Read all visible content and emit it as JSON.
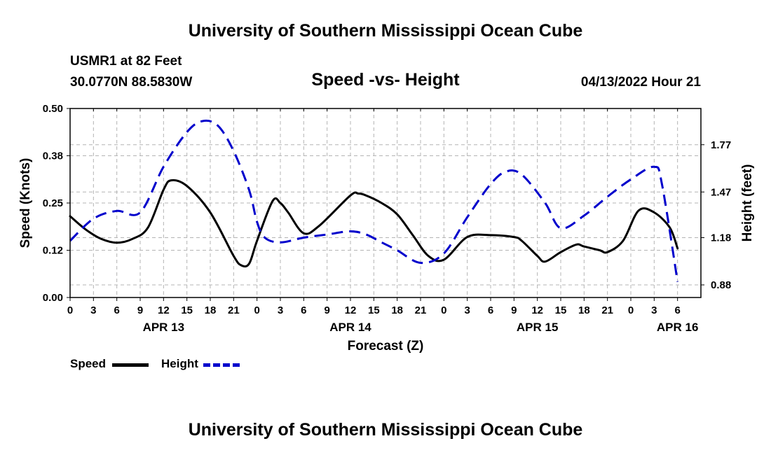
{
  "header": {
    "title": "University of Southern Mississippi Ocean Cube",
    "station": "USMR1 at 82 Feet",
    "coords": "30.0770N  88.5830W",
    "chart_title": "Speed -vs- Height",
    "run": "04/13/2022 Hour 21"
  },
  "footer": {
    "title": "University of Southern Mississippi Ocean Cube"
  },
  "legend": {
    "speed_label": "Speed",
    "height_label": "Height"
  },
  "colors": {
    "speed": "#000000",
    "height": "#0000cc",
    "grid": "#b4b4b4"
  },
  "chart_data": {
    "type": "line",
    "title": "Speed -vs- Height",
    "xlabel": "Forecast (Z)",
    "ylabel": "Speed (Knots)",
    "y2label": "Height (feet)",
    "x_range_hours": [
      0,
      81
    ],
    "x_ticks": [
      {
        "hour": 0,
        "label": "0"
      },
      {
        "hour": 3,
        "label": "3"
      },
      {
        "hour": 6,
        "label": "6"
      },
      {
        "hour": 9,
        "label": "9"
      },
      {
        "hour": 12,
        "label": "12"
      },
      {
        "hour": 15,
        "label": "15"
      },
      {
        "hour": 18,
        "label": "18"
      },
      {
        "hour": 21,
        "label": "21"
      },
      {
        "hour": 24,
        "label": "0"
      },
      {
        "hour": 27,
        "label": "3"
      },
      {
        "hour": 30,
        "label": "6"
      },
      {
        "hour": 33,
        "label": "9"
      },
      {
        "hour": 36,
        "label": "12"
      },
      {
        "hour": 39,
        "label": "15"
      },
      {
        "hour": 42,
        "label": "18"
      },
      {
        "hour": 45,
        "label": "21"
      },
      {
        "hour": 48,
        "label": "0"
      },
      {
        "hour": 51,
        "label": "3"
      },
      {
        "hour": 54,
        "label": "6"
      },
      {
        "hour": 57,
        "label": "9"
      },
      {
        "hour": 60,
        "label": "12"
      },
      {
        "hour": 63,
        "label": "15"
      },
      {
        "hour": 66,
        "label": "18"
      },
      {
        "hour": 69,
        "label": "21"
      },
      {
        "hour": 72,
        "label": "0"
      },
      {
        "hour": 75,
        "label": "3"
      },
      {
        "hour": 78,
        "label": "6"
      }
    ],
    "date_labels": [
      {
        "hour": 12,
        "label": "APR 13"
      },
      {
        "hour": 36,
        "label": "APR 14"
      },
      {
        "hour": 60,
        "label": "APR 15"
      },
      {
        "hour": 78,
        "label": "APR 16"
      }
    ],
    "y_left": {
      "range": [
        0,
        0.5
      ],
      "ticks": [
        {
          "value": 0.0,
          "label": "0.00"
        },
        {
          "value": 0.125,
          "label": "0.12"
        },
        {
          "value": 0.25,
          "label": "0.25"
        },
        {
          "value": 0.375,
          "label": "0.38"
        },
        {
          "value": 0.5,
          "label": "0.50"
        }
      ]
    },
    "y_right": {
      "range": [
        0.8,
        2.0
      ],
      "ticks": [
        {
          "value": 0.88,
          "label": "0.88"
        },
        {
          "value": 1.18,
          "label": "1.18"
        },
        {
          "value": 1.47,
          "label": "1.47"
        },
        {
          "value": 1.77,
          "label": "1.77"
        }
      ]
    },
    "series": [
      {
        "name": "Speed",
        "axis": "left",
        "x": [
          0,
          2,
          4,
          6,
          8,
          10,
          12,
          13,
          15,
          18,
          21,
          22,
          23,
          24,
          26,
          27,
          28,
          30,
          32,
          36,
          37,
          38,
          40,
          42,
          44,
          46,
          48,
          51,
          54,
          57,
          58,
          60,
          61,
          63,
          65,
          66,
          68,
          69,
          71,
          73,
          75,
          77,
          78
        ],
        "values": [
          0.215,
          0.18,
          0.155,
          0.145,
          0.155,
          0.185,
          0.285,
          0.31,
          0.295,
          0.225,
          0.11,
          0.085,
          0.09,
          0.15,
          0.255,
          0.25,
          0.225,
          0.17,
          0.19,
          0.27,
          0.275,
          0.27,
          0.25,
          0.22,
          0.165,
          0.11,
          0.1,
          0.16,
          0.165,
          0.16,
          0.15,
          0.11,
          0.095,
          0.12,
          0.14,
          0.135,
          0.125,
          0.12,
          0.15,
          0.23,
          0.225,
          0.185,
          0.13
        ]
      },
      {
        "name": "Height",
        "axis": "right",
        "x": [
          0,
          3,
          6,
          9,
          12,
          15,
          17,
          19,
          21,
          23,
          24,
          25,
          27,
          30,
          33,
          36,
          38,
          40,
          42,
          45,
          48,
          51,
          54,
          56,
          58,
          61,
          63,
          66,
          69,
          72,
          75,
          76,
          78
        ],
        "values": [
          1.16,
          1.3,
          1.35,
          1.34,
          1.63,
          1.85,
          1.92,
          1.89,
          1.73,
          1.48,
          1.28,
          1.18,
          1.15,
          1.18,
          1.2,
          1.22,
          1.2,
          1.15,
          1.1,
          1.02,
          1.08,
          1.31,
          1.52,
          1.6,
          1.58,
          1.4,
          1.24,
          1.32,
          1.44,
          1.55,
          1.63,
          1.52,
          0.9
        ]
      }
    ]
  }
}
